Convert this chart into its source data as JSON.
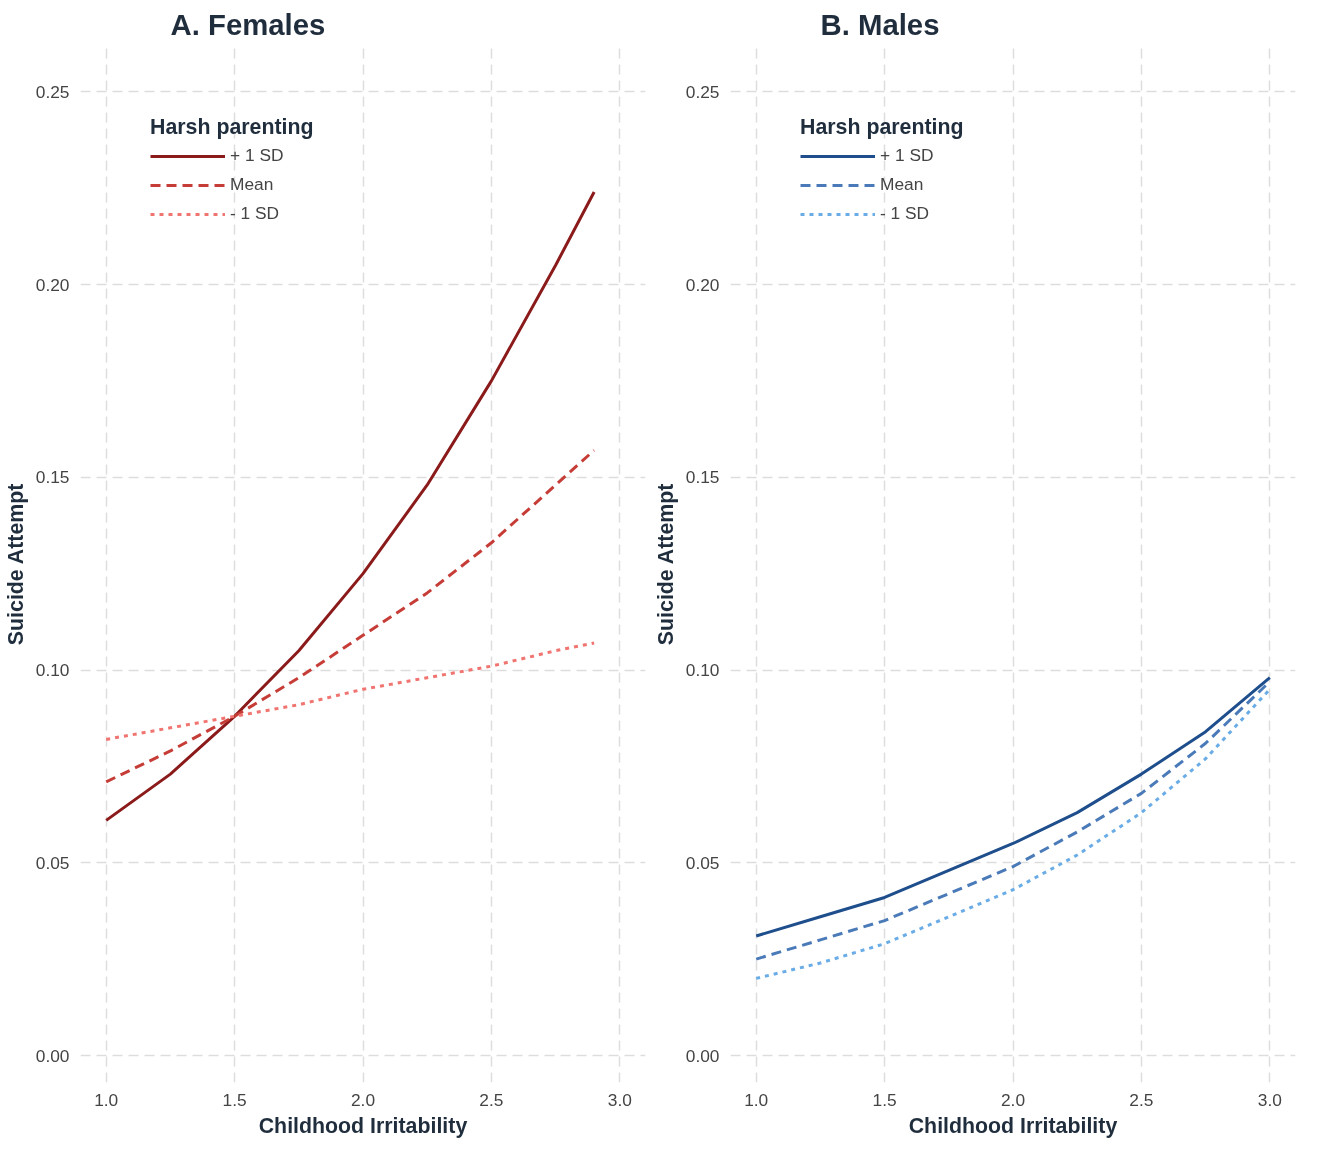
{
  "chart_data": [
    {
      "type": "line",
      "title": "A. Females",
      "xlabel": "Childhood Irritability",
      "ylabel": "Suicide Attempt",
      "legend_title": "Harsh parenting",
      "legend": "top left",
      "grid": true,
      "x": [
        1.0,
        1.25,
        1.5,
        1.75,
        2.0,
        2.25,
        2.5,
        2.75,
        2.9
      ],
      "series": [
        {
          "name": "+ 1 SD",
          "color": "#8b1a1a",
          "line_style": "solid",
          "values": [
            0.061,
            0.073,
            0.088,
            0.105,
            0.125,
            0.148,
            0.175,
            0.205,
            0.224
          ]
        },
        {
          "name": "Mean",
          "color": "#c63d37",
          "line_style": "dashed",
          "values": [
            0.071,
            0.079,
            0.088,
            0.098,
            0.109,
            0.12,
            0.133,
            0.148,
            0.157
          ]
        },
        {
          "name": "- 1 SD",
          "color": "#f07470",
          "line_style": "dotted",
          "values": [
            0.082,
            0.085,
            0.088,
            0.091,
            0.095,
            0.098,
            0.101,
            0.105,
            0.107
          ]
        }
      ],
      "xlim": [
        0.9,
        3.1
      ],
      "ylim": [
        -0.007,
        0.262
      ],
      "xticks": [
        {
          "value": 1.0,
          "label": "1.0"
        },
        {
          "value": 1.5,
          "label": "1.5"
        },
        {
          "value": 2.0,
          "label": "2.0"
        },
        {
          "value": 2.5,
          "label": "2.5"
        },
        {
          "value": 3.0,
          "label": "3.0"
        }
      ],
      "yticks": [
        {
          "value": 0,
          "label": "0.00"
        },
        0.05,
        {
          "value": 0.1,
          "label": "0.10"
        },
        0.15,
        {
          "value": 0.2,
          "label": "0.20"
        },
        0.25
      ]
    },
    {
      "type": "line",
      "title": "B. Males",
      "xlabel": "Childhood Irritability",
      "ylabel": "Suicide Attempt",
      "legend_title": "Harsh parenting",
      "legend": "top left",
      "grid": true,
      "x": [
        1.0,
        1.25,
        1.5,
        1.75,
        2.0,
        2.25,
        2.5,
        2.75,
        3.0
      ],
      "series": [
        {
          "name": "+ 1 SD",
          "color": "#1f4e8c",
          "line_style": "solid",
          "values": [
            0.031,
            0.036,
            0.041,
            0.048,
            0.055,
            0.063,
            0.073,
            0.084,
            0.098
          ]
        },
        {
          "name": "Mean",
          "color": "#4a7ab8",
          "line_style": "dashed",
          "values": [
            0.025,
            0.03,
            0.035,
            0.042,
            0.049,
            0.058,
            0.068,
            0.081,
            0.097
          ]
        },
        {
          "name": "- 1 SD",
          "color": "#6aace6",
          "line_style": "dotted",
          "values": [
            0.02,
            0.024,
            0.029,
            0.036,
            0.043,
            0.052,
            0.063,
            0.077,
            0.095
          ]
        }
      ],
      "xlim": [
        0.9,
        3.1
      ],
      "ylim": [
        -0.007,
        0.262
      ],
      "xticks": [
        {
          "value": 1.0,
          "label": "1.0"
        },
        {
          "value": 1.5,
          "label": "1.5"
        },
        {
          "value": 2.0,
          "label": "2.0"
        },
        {
          "value": 2.5,
          "label": "2.5"
        },
        {
          "value": 3.0,
          "label": "3.0"
        }
      ],
      "yticks": [
        {
          "value": 0,
          "label": "0.00"
        },
        0.05,
        {
          "value": 0.1,
          "label": "0.10"
        },
        0.15,
        {
          "value": 0.2,
          "label": "0.20"
        },
        0.25
      ]
    }
  ]
}
